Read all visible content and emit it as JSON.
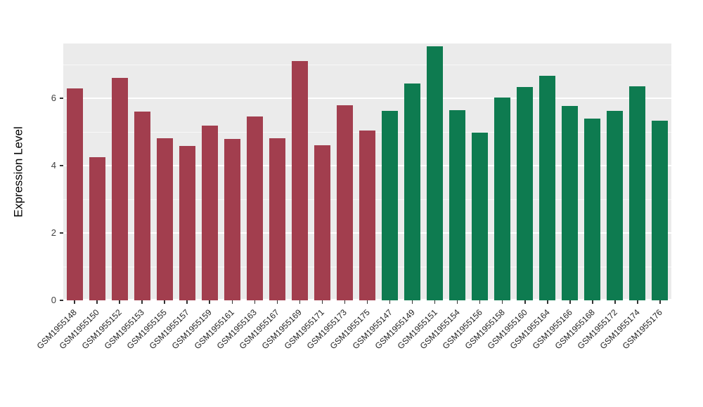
{
  "chart_data": {
    "type": "bar",
    "title": "",
    "xlabel": "",
    "ylabel": "Expression Level",
    "ylim": [
      0,
      7.63
    ],
    "yticks": [
      0,
      2,
      4,
      6
    ],
    "yticks_minor": [
      1,
      3,
      5,
      7
    ],
    "grid": true,
    "legend": "none",
    "colors": {
      "figure_bg": "#FFFFFF",
      "panel_bg": "#EBEBEB",
      "grid": "#FFFFFF",
      "tick": "#333333",
      "text": "#1F1F1F"
    },
    "groups": [
      {
        "name": "group-red",
        "color": "#A23E4E"
      },
      {
        "name": "group-green",
        "color": "#0E7B50"
      }
    ],
    "bars": [
      {
        "label": "GSM1955148",
        "value": 6.3,
        "group": 0
      },
      {
        "label": "GSM1955150",
        "value": 4.25,
        "group": 0
      },
      {
        "label": "GSM1955152",
        "value": 6.6,
        "group": 0
      },
      {
        "label": "GSM1955153",
        "value": 5.6,
        "group": 0
      },
      {
        "label": "GSM1955155",
        "value": 4.82,
        "group": 0
      },
      {
        "label": "GSM1955157",
        "value": 4.58,
        "group": 0
      },
      {
        "label": "GSM1955159",
        "value": 5.2,
        "group": 0
      },
      {
        "label": "GSM1955161",
        "value": 4.8,
        "group": 0
      },
      {
        "label": "GSM1955163",
        "value": 5.47,
        "group": 0
      },
      {
        "label": "GSM1955167",
        "value": 4.82,
        "group": 0
      },
      {
        "label": "GSM1955169",
        "value": 7.1,
        "group": 0
      },
      {
        "label": "GSM1955171",
        "value": 4.6,
        "group": 0
      },
      {
        "label": "GSM1955173",
        "value": 5.8,
        "group": 0
      },
      {
        "label": "GSM1955175",
        "value": 5.05,
        "group": 0
      },
      {
        "label": "GSM1955147",
        "value": 5.62,
        "group": 1
      },
      {
        "label": "GSM1955149",
        "value": 6.45,
        "group": 1
      },
      {
        "label": "GSM1955151",
        "value": 7.55,
        "group": 1
      },
      {
        "label": "GSM1955154",
        "value": 5.65,
        "group": 1
      },
      {
        "label": "GSM1955156",
        "value": 4.98,
        "group": 1
      },
      {
        "label": "GSM1955158",
        "value": 6.02,
        "group": 1
      },
      {
        "label": "GSM1955160",
        "value": 6.33,
        "group": 1
      },
      {
        "label": "GSM1955164",
        "value": 6.67,
        "group": 1
      },
      {
        "label": "GSM1955166",
        "value": 5.78,
        "group": 1
      },
      {
        "label": "GSM1955168",
        "value": 5.4,
        "group": 1
      },
      {
        "label": "GSM1955172",
        "value": 5.62,
        "group": 1
      },
      {
        "label": "GSM1955174",
        "value": 6.35,
        "group": 1
      },
      {
        "label": "GSM1955176",
        "value": 5.33,
        "group": 1
      }
    ]
  }
}
